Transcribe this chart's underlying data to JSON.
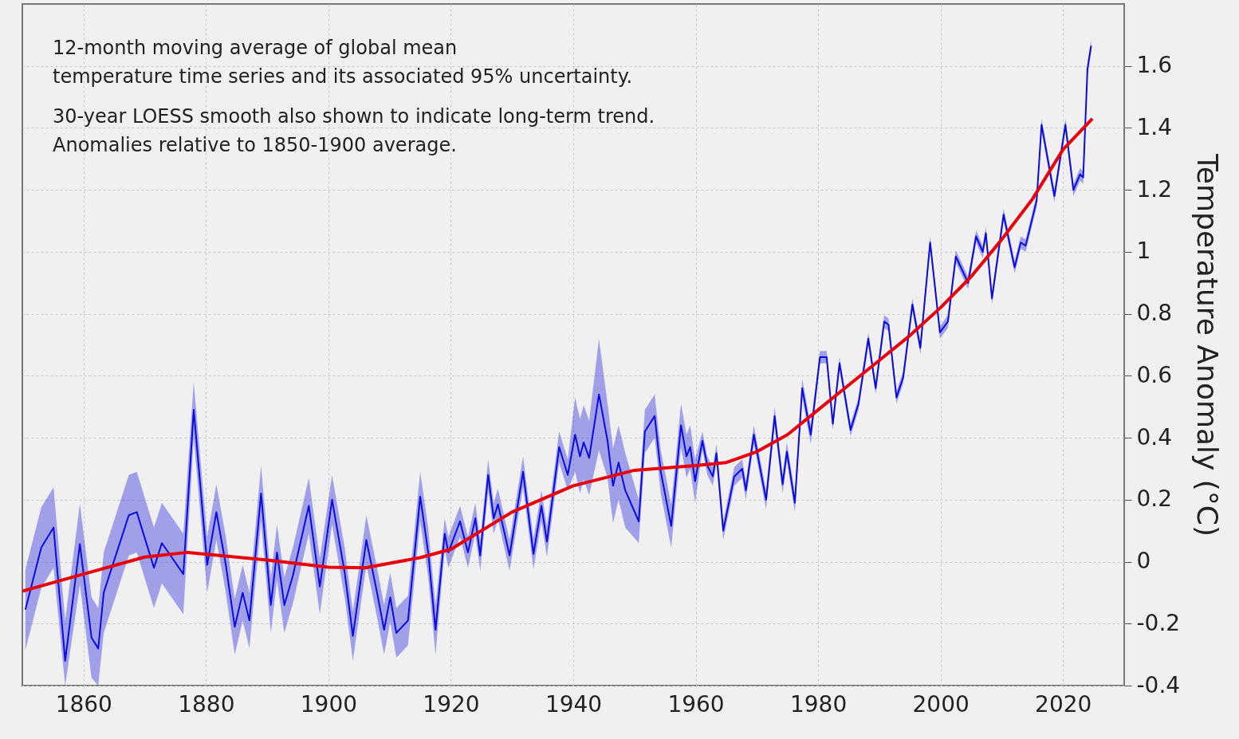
{
  "chart_data": {
    "type": "line",
    "ylabel": "Temperature Anomaly (°C)",
    "annotations": [
      "12-month moving average of global mean\ntemperature time series and its associated 95% uncertainty.",
      "30-year LOESS smooth also shown to indicate long-term trend.\nAnomalies relative to 1850-1900 average."
    ],
    "xlim": [
      1850,
      2030
    ],
    "xticks": [
      1860,
      1880,
      1900,
      1920,
      1940,
      1960,
      1980,
      2000,
      2020
    ],
    "ylim": [
      -0.4,
      1.8
    ],
    "yticks": [
      -0.4,
      -0.2,
      0,
      0.2,
      0.4,
      0.6,
      0.8,
      1,
      1.2,
      1.4,
      1.6
    ],
    "grid": true,
    "line_style": "solid",
    "series": [
      {
        "color": "#0b0bdd",
        "x": [
          1850.5,
          1853.1,
          1855.1,
          1857.0,
          1859.4,
          1861.3,
          1862.4,
          1863.3,
          1867.4,
          1868.7,
          1871.5,
          1872.8,
          1876.3,
          1878.0,
          1880.2,
          1881.7,
          1883.2,
          1884.7,
          1886.0,
          1887.1,
          1889.0,
          1890.6,
          1891.6,
          1892.8,
          1894.2,
          1896.8,
          1898.6,
          1900.6,
          1902.7,
          1904.0,
          1906.2,
          1907.9,
          1909.1,
          1910.1,
          1911.1,
          1913.0,
          1915.0,
          1916.3,
          1917.5,
          1919.0,
          1919.6,
          1921.5,
          1922.8,
          1924.0,
          1924.8,
          1926.1,
          1927.0,
          1927.7,
          1929.6,
          1931.8,
          1933.5,
          1934.8,
          1935.7,
          1937.7,
          1939.1,
          1940.3,
          1941.1,
          1941.7,
          1942.6,
          1944.2,
          1945.6,
          1946.5,
          1947.4,
          1948.5,
          1950.7,
          1951.7,
          1953.3,
          1954.3,
          1956.0,
          1957.6,
          1958.5,
          1959.1,
          1959.9,
          1961.1,
          1961.9,
          1962.8,
          1963.4,
          1964.5,
          1966.3,
          1967.6,
          1968.2,
          1969.5,
          1971.5,
          1972.9,
          1974.2,
          1974.9,
          1976.2,
          1977.4,
          1978.8,
          1980.3,
          1981.4,
          1982.4,
          1983.5,
          1985.3,
          1986.6,
          1988.2,
          1989.4,
          1990.8,
          1991.5,
          1992.8,
          1993.9,
          1995.4,
          1996.7,
          1998.3,
          1999.9,
          2001.2,
          2002.5,
          2004.5,
          2005.8,
          2006.9,
          2007.4,
          2008.4,
          2010.3,
          2012.1,
          2013.1,
          2013.9,
          2015.7,
          2016.5,
          2018.6,
          2020.4,
          2021.7,
          2022.8,
          2023.3,
          2024.0,
          2024.6
        ],
        "values": [
          -0.155,
          0.046,
          0.11,
          -0.32,
          0.057,
          -0.245,
          -0.28,
          -0.1,
          0.15,
          0.16,
          -0.02,
          0.06,
          -0.04,
          0.49,
          -0.01,
          0.16,
          -0.005,
          -0.21,
          -0.1,
          -0.19,
          0.22,
          -0.14,
          0.03,
          -0.14,
          -0.045,
          0.18,
          -0.08,
          0.2,
          -0.04,
          -0.24,
          0.07,
          -0.095,
          -0.22,
          -0.115,
          -0.23,
          -0.19,
          0.21,
          0.03,
          -0.22,
          0.09,
          0.03,
          0.13,
          0.03,
          0.14,
          0.02,
          0.28,
          0.14,
          0.185,
          0.02,
          0.29,
          0.025,
          0.18,
          0.065,
          0.37,
          0.28,
          0.41,
          0.34,
          0.385,
          0.335,
          0.54,
          0.39,
          0.245,
          0.32,
          0.23,
          0.13,
          0.42,
          0.47,
          0.29,
          0.115,
          0.44,
          0.34,
          0.37,
          0.26,
          0.39,
          0.31,
          0.275,
          0.35,
          0.1,
          0.275,
          0.3,
          0.23,
          0.41,
          0.2,
          0.47,
          0.25,
          0.355,
          0.19,
          0.56,
          0.41,
          0.66,
          0.66,
          0.445,
          0.64,
          0.425,
          0.51,
          0.72,
          0.56,
          0.775,
          0.765,
          0.53,
          0.595,
          0.83,
          0.69,
          1.03,
          0.74,
          0.775,
          0.985,
          0.9,
          1.05,
          1,
          1.06,
          0.85,
          1.12,
          0.95,
          1.03,
          1.02,
          1.165,
          1.41,
          1.18,
          1.41,
          1.2,
          1.25,
          1.24,
          1.59,
          1.665
        ],
        "lower": [
          -0.285,
          -0.084,
          -0.02,
          -0.4,
          -0.073,
          -0.375,
          -0.4,
          -0.23,
          0.02,
          0.03,
          -0.15,
          -0.07,
          -0.17,
          0.4,
          -0.1,
          0.07,
          -0.095,
          -0.3,
          -0.19,
          -0.28,
          0.13,
          -0.23,
          -0.06,
          -0.23,
          -0.135,
          0.09,
          -0.17,
          0.12,
          -0.12,
          -0.32,
          -0.01,
          -0.175,
          -0.3,
          -0.195,
          -0.31,
          -0.27,
          0.13,
          -0.05,
          -0.3,
          0.04,
          -0.02,
          0.08,
          -0.02,
          0.09,
          -0.03,
          0.23,
          0.09,
          0.135,
          -0.03,
          0.24,
          -0.025,
          0.13,
          0.015,
          0.32,
          0.23,
          0.29,
          0.22,
          0.265,
          0.215,
          0.36,
          0.27,
          0.125,
          0.2,
          0.11,
          0.06,
          0.35,
          0.4,
          0.22,
          0.045,
          0.37,
          0.27,
          0.3,
          0.19,
          0.36,
          0.28,
          0.245,
          0.32,
          0.07,
          0.245,
          0.27,
          0.2,
          0.38,
          0.17,
          0.44,
          0.22,
          0.325,
          0.16,
          0.53,
          0.38,
          0.64,
          0.64,
          0.425,
          0.62,
          0.405,
          0.49,
          0.7,
          0.54,
          0.755,
          0.745,
          0.51,
          0.575,
          0.81,
          0.67,
          1.01,
          0.72,
          0.755,
          0.965,
          0.88,
          1.03,
          0.98,
          1.04,
          0.83,
          1.1,
          0.93,
          1.01,
          1,
          1.145,
          1.39,
          1.16,
          1.39,
          1.18,
          1.23,
          1.22,
          1.57,
          1.645
        ],
        "upper": [
          -0.025,
          0.176,
          0.24,
          -0.19,
          0.187,
          -0.115,
          -0.15,
          0.03,
          0.28,
          0.29,
          0.11,
          0.19,
          0.09,
          0.58,
          0.08,
          0.25,
          0.085,
          -0.12,
          -0.01,
          -0.1,
          0.31,
          -0.05,
          0.12,
          -0.05,
          0.045,
          0.27,
          0.01,
          0.28,
          0.04,
          -0.16,
          0.15,
          -0.015,
          -0.14,
          -0.035,
          -0.15,
          -0.11,
          0.29,
          0.11,
          -0.14,
          0.14,
          0.08,
          0.18,
          0.08,
          0.19,
          0.07,
          0.33,
          0.19,
          0.235,
          0.07,
          0.34,
          0.075,
          0.23,
          0.115,
          0.42,
          0.33,
          0.53,
          0.46,
          0.505,
          0.455,
          0.72,
          0.51,
          0.365,
          0.44,
          0.35,
          0.2,
          0.49,
          0.54,
          0.36,
          0.185,
          0.51,
          0.41,
          0.44,
          0.33,
          0.42,
          0.34,
          0.305,
          0.38,
          0.13,
          0.305,
          0.33,
          0.26,
          0.44,
          0.23,
          0.5,
          0.28,
          0.385,
          0.22,
          0.59,
          0.44,
          0.68,
          0.68,
          0.465,
          0.66,
          0.445,
          0.53,
          0.74,
          0.58,
          0.795,
          0.785,
          0.55,
          0.615,
          0.85,
          0.71,
          1.05,
          0.76,
          0.795,
          1.005,
          0.92,
          1.07,
          1.02,
          1.08,
          0.87,
          1.14,
          0.97,
          1.05,
          1.04,
          1.185,
          1.43,
          1.2,
          1.43,
          1.22,
          1.27,
          1.26,
          1.61,
          1.685
        ]
      },
      {
        "color": "#e8000b",
        "x": [
          1850,
          1860,
          1870,
          1877,
          1890,
          1900,
          1906,
          1915,
          1920,
          1930,
          1940,
          1950,
          1960,
          1965,
          1970,
          1975,
          1980,
          1985,
          1990,
          1995,
          2000,
          2005,
          2010,
          2015,
          2020,
          2024.8
        ],
        "values": [
          -0.095,
          -0.04,
          0.015,
          0.03,
          0.005,
          -0.018,
          -0.02,
          0.013,
          0.04,
          0.16,
          0.245,
          0.295,
          0.31,
          0.32,
          0.355,
          0.41,
          0.49,
          0.57,
          0.65,
          0.73,
          0.82,
          0.92,
          1.04,
          1.17,
          1.33,
          1.43
        ]
      }
    ]
  }
}
